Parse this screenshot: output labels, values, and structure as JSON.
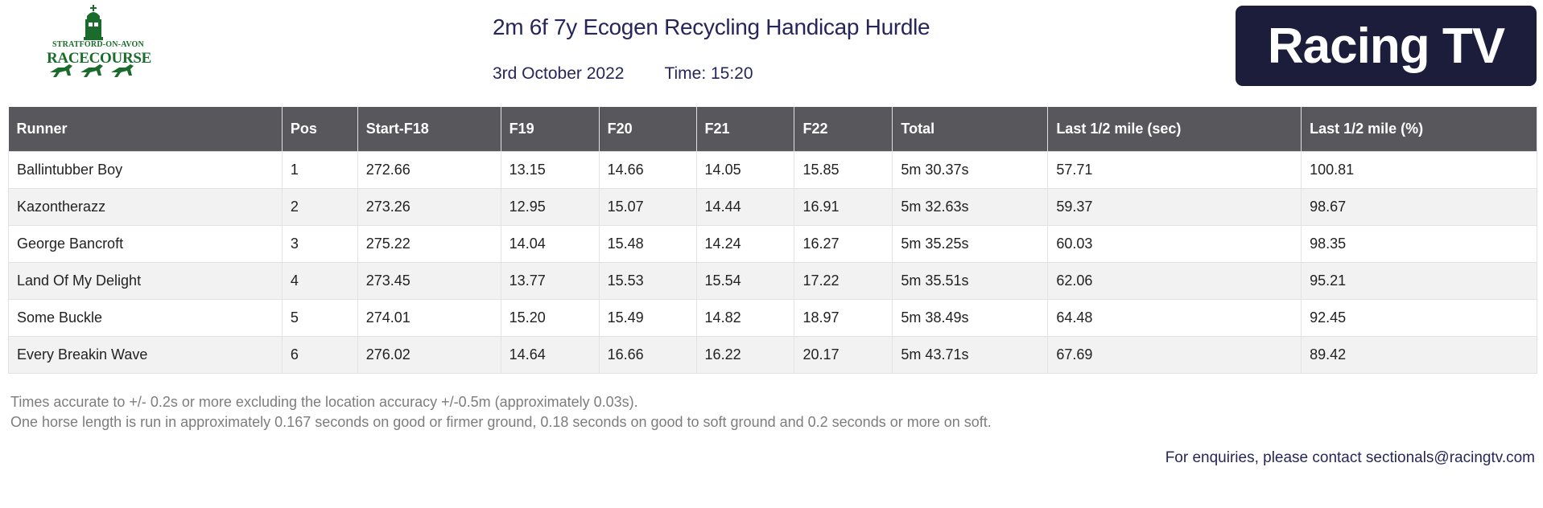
{
  "header": {
    "venue_line1": "STRATFORD-ON-AVON",
    "venue_line2": "RACECOURSE",
    "race_title": "2m 6f 7y Ecogen Recycling Handicap Hurdle",
    "date": "3rd October 2022",
    "time": "Time: 15:20",
    "brand": "Racing TV"
  },
  "table": {
    "columns": [
      "Runner",
      "Pos",
      "Start-F18",
      "F19",
      "F20",
      "F21",
      "F22",
      "Total",
      "Last 1/2 mile (sec)",
      "Last 1/2 mile (%)"
    ],
    "rows": [
      [
        "Ballintubber Boy",
        "1",
        "272.66",
        "13.15",
        "14.66",
        "14.05",
        "15.85",
        "5m 30.37s",
        "57.71",
        "100.81"
      ],
      [
        "Kazontherazz",
        "2",
        "273.26",
        "12.95",
        "15.07",
        "14.44",
        "16.91",
        "5m 32.63s",
        "59.37",
        "98.67"
      ],
      [
        "George Bancroft",
        "3",
        "275.22",
        "14.04",
        "15.48",
        "14.24",
        "16.27",
        "5m 35.25s",
        "60.03",
        "98.35"
      ],
      [
        "Land Of My Delight",
        "4",
        "273.45",
        "13.77",
        "15.53",
        "15.54",
        "17.22",
        "5m 35.51s",
        "62.06",
        "95.21"
      ],
      [
        "Some Buckle",
        "5",
        "274.01",
        "15.20",
        "15.49",
        "14.82",
        "18.97",
        "5m 38.49s",
        "64.48",
        "92.45"
      ],
      [
        "Every Breakin Wave",
        "6",
        "276.02",
        "14.64",
        "16.66",
        "16.22",
        "20.17",
        "5m 43.71s",
        "67.69",
        "89.42"
      ]
    ]
  },
  "notes": {
    "line1": "Times accurate to +/- 0.2s or more excluding the location accuracy +/-0.5m (approximately 0.03s).",
    "line2": "One horse length is run in approximately 0.167 seconds on good or firmer ground, 0.18 seconds on good to soft ground and 0.2 seconds or more on soft.",
    "enquiries": "For enquiries, please contact sectionals@racingtv.com"
  },
  "colors": {
    "venue_green": "#1a6b2c",
    "title_navy": "#26265a",
    "header_gray": "#58575c",
    "brand_bg": "#1c1d3a"
  }
}
